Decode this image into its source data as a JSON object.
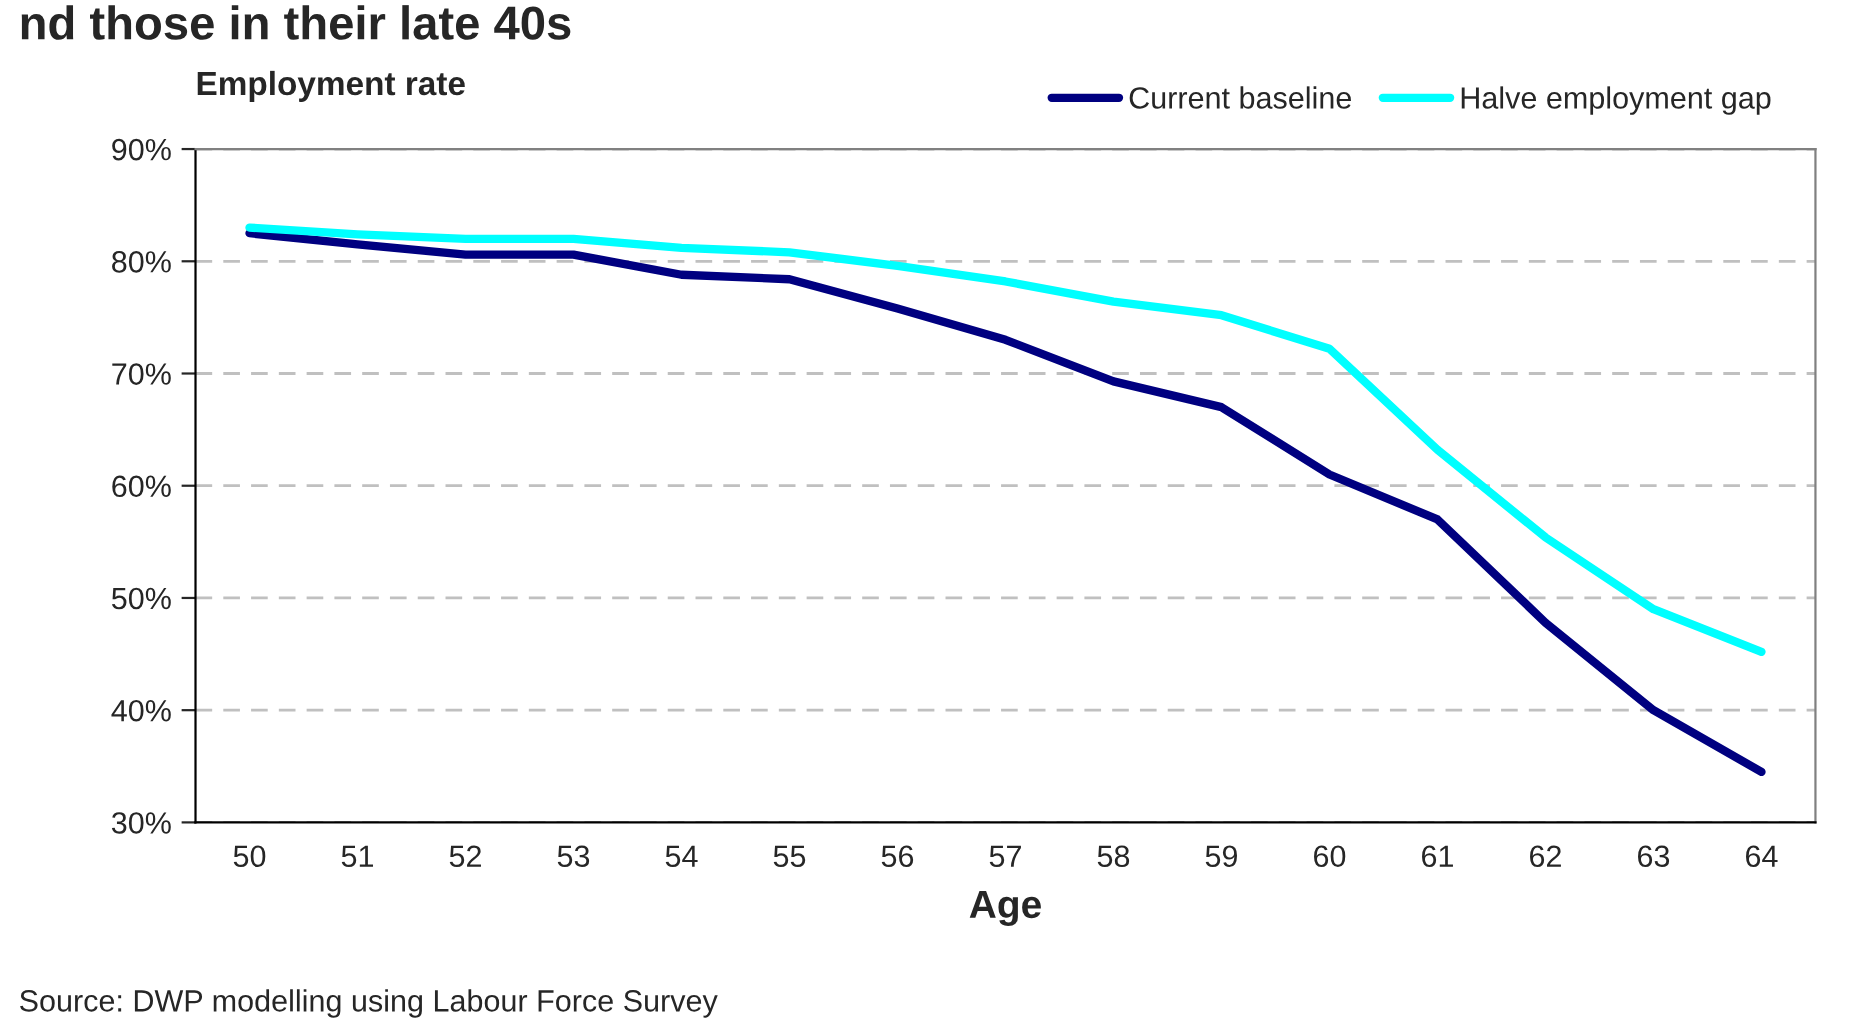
{
  "chart_data": {
    "type": "line",
    "title": "nd those in their late 40s",
    "xlabel": "Age",
    "ylabel": "Employment rate",
    "categories": [
      "50",
      "51",
      "52",
      "53",
      "54",
      "55",
      "56",
      "57",
      "58",
      "59",
      "60",
      "61",
      "62",
      "63",
      "64"
    ],
    "series": [
      {
        "name": "Current baseline",
        "color": "#000080",
        "values": [
          82.5,
          81.5,
          80.6,
          80.6,
          78.8,
          78.4,
          75.8,
          73.0,
          69.3,
          67.0,
          61.0,
          57.0,
          47.8,
          40.0,
          34.5
        ]
      },
      {
        "name": "Halve employment gap",
        "color": "#00ffff",
        "values": [
          83.0,
          82.4,
          82.0,
          82.0,
          81.2,
          80.8,
          79.6,
          78.2,
          76.4,
          75.2,
          72.2,
          63.2,
          55.4,
          49.0,
          45.2
        ]
      }
    ],
    "ylim": [
      30,
      90
    ],
    "yticks": [
      {
        "value": 30,
        "label": "30%"
      },
      {
        "value": 40,
        "label": "40%"
      },
      {
        "value": 50,
        "label": "50%"
      },
      {
        "value": 60,
        "label": "60%"
      },
      {
        "value": 70,
        "label": "70%"
      },
      {
        "value": 80,
        "label": "80%"
      },
      {
        "value": 90,
        "label": "90%"
      }
    ],
    "grid": "y",
    "legend": "top right",
    "marker": "none",
    "line_style": "solid",
    "annotations": [
      "Source: DWP modelling using Labour Force Survey"
    ]
  }
}
